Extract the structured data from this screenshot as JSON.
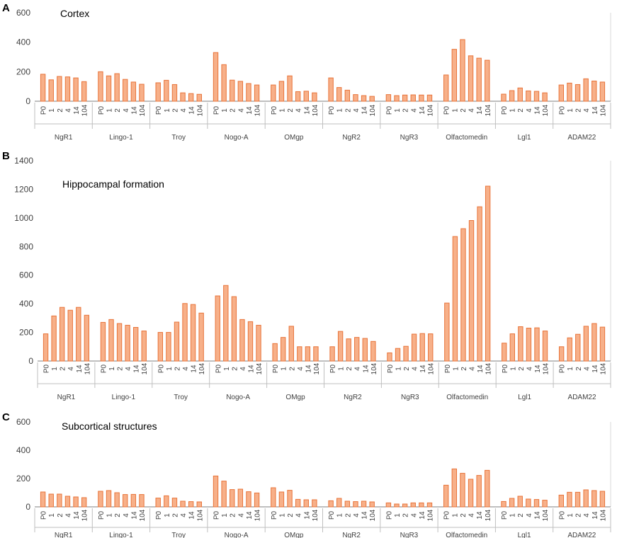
{
  "colors": {
    "bar_fill": "#f7b089",
    "bar_stroke": "#e8743a",
    "axis": "#7f7f7f",
    "grid": "#d9d9d9",
    "text": "#404040",
    "group_line": "#bfbfbf"
  },
  "chart_data": [
    {
      "type": "bar",
      "panel_label": "A",
      "title": "Cortex",
      "ylim": [
        0,
        600
      ],
      "yticks": [
        0,
        200,
        400,
        600
      ],
      "timepoints": [
        "P0",
        "1",
        "2",
        "4",
        "14",
        "104"
      ],
      "groups": [
        "NgR1",
        "Lingo-1",
        "Troy",
        "Nogo-A",
        "OMgp",
        "NgR2",
        "NgR3",
        "Olfactomedin",
        "Lgl1",
        "ADAM22"
      ],
      "values": [
        [
          183,
          145,
          168,
          165,
          158,
          133
        ],
        [
          200,
          172,
          187,
          148,
          130,
          115
        ],
        [
          125,
          142,
          113,
          57,
          52,
          47
        ],
        [
          330,
          248,
          143,
          135,
          120,
          110
        ],
        [
          110,
          135,
          172,
          65,
          68,
          57
        ],
        [
          158,
          93,
          75,
          45,
          38,
          33
        ],
        [
          45,
          38,
          42,
          43,
          42,
          42
        ],
        [
          178,
          352,
          418,
          308,
          292,
          278
        ],
        [
          48,
          72,
          90,
          70,
          67,
          57
        ],
        [
          110,
          123,
          113,
          152,
          137,
          130
        ]
      ]
    },
    {
      "type": "bar",
      "panel_label": "B",
      "title": "Hippocampal formation",
      "ylim": [
        0,
        1400
      ],
      "yticks": [
        0,
        200,
        400,
        600,
        800,
        1000,
        1200,
        1400
      ],
      "timepoints": [
        "P0",
        "1",
        "2",
        "4",
        "14",
        "104"
      ],
      "groups": [
        "NgR1",
        "Lingo-1",
        "Troy",
        "Nogo-A",
        "OMgp",
        "NgR2",
        "NgR3",
        "Olfactomedin",
        "Lgl1",
        "ADAM22"
      ],
      "values": [
        [
          190,
          315,
          375,
          355,
          375,
          320
        ],
        [
          270,
          290,
          262,
          250,
          235,
          210
        ],
        [
          200,
          200,
          272,
          402,
          395,
          335
        ],
        [
          455,
          528,
          450,
          290,
          275,
          250
        ],
        [
          122,
          165,
          243,
          100,
          100,
          100
        ],
        [
          100,
          207,
          155,
          165,
          158,
          137
        ],
        [
          57,
          88,
          103,
          188,
          192,
          190
        ],
        [
          405,
          870,
          925,
          982,
          1078,
          1222
        ],
        [
          125,
          190,
          240,
          230,
          232,
          210
        ],
        [
          100,
          162,
          187,
          243,
          262,
          237
        ]
      ]
    },
    {
      "type": "bar",
      "panel_label": "C",
      "title": "Subcortical structures",
      "ylim": [
        0,
        600
      ],
      "yticks": [
        0,
        200,
        400,
        600
      ],
      "timepoints": [
        "P0",
        "1",
        "2",
        "4",
        "14",
        "104"
      ],
      "groups": [
        "NgR1",
        "Lingo-1",
        "Troy",
        "Nogo-A",
        "OMgp",
        "NgR2",
        "NgR3",
        "Olfactomedin",
        "Lgl1",
        "ADAM22"
      ],
      "values": [
        [
          105,
          90,
          90,
          75,
          70,
          65
        ],
        [
          110,
          115,
          100,
          87,
          88,
          87
        ],
        [
          62,
          78,
          62,
          40,
          37,
          35
        ],
        [
          218,
          182,
          122,
          125,
          107,
          98
        ],
        [
          135,
          105,
          117,
          53,
          50,
          50
        ],
        [
          43,
          60,
          40,
          37,
          40,
          35
        ],
        [
          28,
          20,
          20,
          28,
          28,
          28
        ],
        [
          153,
          268,
          237,
          195,
          222,
          258
        ],
        [
          38,
          60,
          75,
          55,
          52,
          47
        ],
        [
          83,
          103,
          103,
          120,
          115,
          110
        ]
      ]
    }
  ]
}
